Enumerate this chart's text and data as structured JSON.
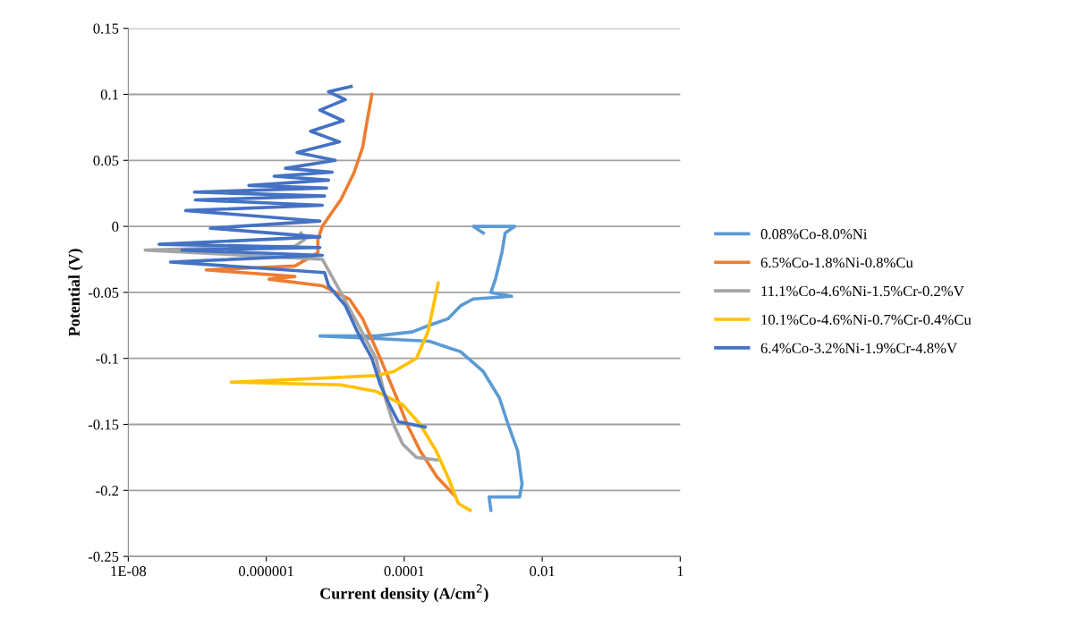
{
  "chart_data": {
    "type": "line",
    "xlabel": "Current density (A/cm$^{2}$)",
    "ylabel": "Potential (V)",
    "log": "x",
    "grid": "y",
    "legend": "right",
    "marker": "none",
    "line_style": "solid",
    "xlim": [
      1e-08,
      1
    ],
    "xticks": [
      {
        "value": 1e-08,
        "label": "1E-08"
      },
      {
        "value": 1e-06,
        "label": "0.000001"
      },
      {
        "value": 0.0001,
        "label": "0.0001"
      },
      {
        "value": 0.01,
        "label": "0.01"
      },
      {
        "value": 1,
        "label": "1"
      }
    ],
    "ylim": [
      -0.25,
      0.15
    ],
    "yticks": [
      {
        "value": -0.25,
        "label": "-0.25"
      },
      {
        "value": -0.2,
        "label": "-0.2"
      },
      {
        "value": -0.15,
        "label": "-0.15"
      },
      {
        "value": -0.1,
        "label": "-0.1"
      },
      {
        "value": -0.05,
        "label": "-0.05"
      },
      {
        "value": 0,
        "label": "0"
      },
      {
        "value": 0.05,
        "label": "0.05"
      },
      {
        "value": 0.1,
        "label": "0.1"
      },
      {
        "value": 0.15,
        "label": "0.15"
      }
    ],
    "series": [
      {
        "name": "0.08%Co-8.0%Ni",
        "color": "#5b9bd5",
        "x": [
          0.0018,
          0.0017,
          0.0047,
          0.0051,
          0.0044,
          0.0032,
          0.0024,
          0.0014,
          0.00066,
          0.00023,
          3.9e-05,
          6e-06,
          3.9e-05,
          0.00013,
          0.00023,
          0.00043,
          0.00066,
          0.001,
          0.0036,
          0.0018,
          0.0021,
          0.0026,
          0.0029,
          0.004,
          0.001,
          0.0014
        ],
        "values": [
          -0.215,
          -0.205,
          -0.205,
          -0.195,
          -0.17,
          -0.15,
          -0.13,
          -0.11,
          -0.095,
          -0.087,
          -0.085,
          -0.083,
          -0.083,
          -0.08,
          -0.075,
          -0.07,
          -0.06,
          -0.055,
          -0.053,
          -0.05,
          -0.04,
          -0.02,
          -0.005,
          0.0,
          0.0,
          -0.005
        ]
      },
      {
        "name": "6.5%Co-1.8%Ni-0.8%Cu",
        "color": "#ed7d31",
        "x": [
          0.00054,
          0.0003,
          0.00017,
          0.00011,
          7.8e-05,
          4.5e-05,
          2.5e-05,
          1.6e-05,
          6.5e-06,
          1.1e-06,
          2.6e-06,
          1.35e-07,
          2.6e-06,
          5.6e-06,
          5.6e-06,
          6.5e-06,
          8.8e-06,
          1.2e-05,
          1.85e-05,
          2.5e-05,
          2.9e-05,
          3.4e-05
        ],
        "values": [
          -0.204,
          -0.19,
          -0.17,
          -0.15,
          -0.13,
          -0.1,
          -0.07,
          -0.055,
          -0.045,
          -0.04,
          -0.038,
          -0.033,
          -0.03,
          -0.02,
          -0.01,
          0.0,
          0.01,
          0.02,
          0.04,
          0.06,
          0.08,
          0.1
        ]
      },
      {
        "name": "11.1%Co-4.6%Ni-1.5%Cr-0.2%V",
        "color": "#a5a5a5",
        "x": [
          0.0003,
          0.00015,
          9.5e-05,
          7e-05,
          5.3e-05,
          3.9e-05,
          1.2e-05,
          6.5e-06,
          1.76e-08,
          2.6e-06,
          3.6e-06,
          3.2e-06
        ],
        "values": [
          -0.177,
          -0.175,
          -0.165,
          -0.15,
          -0.13,
          -0.1,
          -0.05,
          -0.025,
          -0.018,
          -0.015,
          -0.01,
          -0.005
        ]
      },
      {
        "name": "10.1%Co-4.6%Ni-0.7%Cr-0.4%Cu",
        "color": "#ffc000",
        "x": [
          0.0009,
          0.00061,
          0.00043,
          0.00029,
          0.00017,
          9.5e-05,
          3.9e-05,
          1.2e-05,
          3.1e-07,
          6.5e-06,
          3.9e-05,
          7e-05,
          0.00015,
          0.00022,
          0.00031
        ],
        "values": [
          -0.215,
          -0.21,
          -0.19,
          -0.17,
          -0.15,
          -0.135,
          -0.125,
          -0.12,
          -0.118,
          -0.115,
          -0.113,
          -0.11,
          -0.1,
          -0.08,
          -0.043
        ]
      },
      {
        "name": "6.4%Co-3.2%Ni-1.9%Cr-4.8%V",
        "color": "#4472c4",
        "x": [
          0.0002,
          8.2e-05,
          6.1e-05,
          4.5e-05,
          3.4e-05,
          2.1e-05,
          1.4e-05,
          8e-06,
          7e-06,
          4.1e-08,
          6.5e-06,
          6e-08,
          6e-06,
          2.8e-08,
          6e-06,
          1.55e-07,
          6e-06,
          6.8e-08,
          6.5e-06,
          9.4e-08,
          7e-06,
          9.1e-08,
          7.5e-06,
          5.6e-07,
          8e-06,
          1.3e-06,
          9e-06,
          1.9e-06,
          1e-05,
          2.8e-06,
          1.15e-05,
          4.4e-06,
          1.3e-05,
          6e-06,
          1.4e-05,
          8e-06,
          1.7e-05
        ],
        "values": [
          -0.152,
          -0.148,
          -0.135,
          -0.12,
          -0.1,
          -0.08,
          -0.06,
          -0.045,
          -0.035,
          -0.027,
          -0.022,
          -0.018,
          -0.016,
          -0.0136,
          -0.008,
          -0.0014,
          0.004,
          0.012,
          0.016,
          0.02,
          0.023,
          0.026,
          0.029,
          0.031,
          0.035,
          0.038,
          0.041,
          0.044,
          0.05,
          0.056,
          0.064,
          0.072,
          0.08,
          0.088,
          0.096,
          0.102,
          0.106
        ]
      }
    ]
  }
}
